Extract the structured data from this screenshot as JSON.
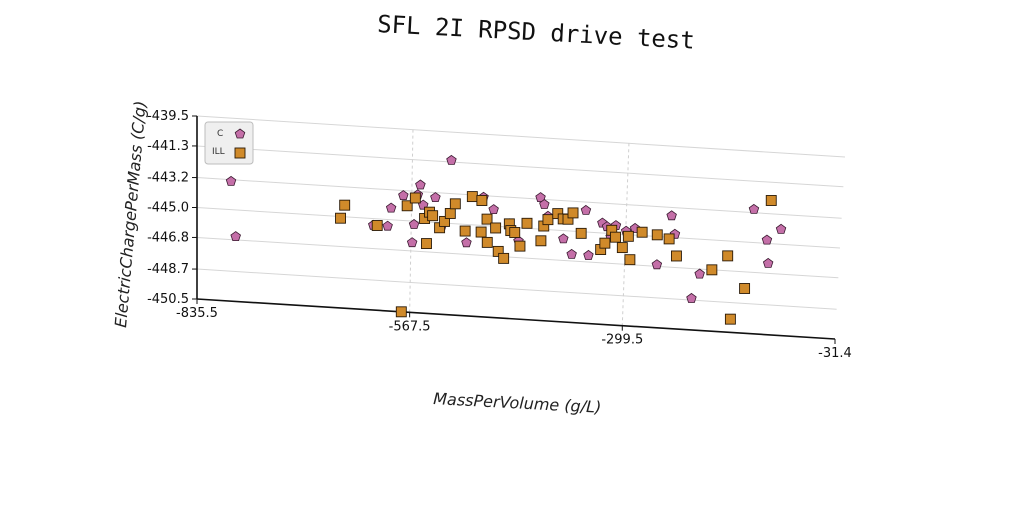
{
  "chart_data": {
    "type": "scatter",
    "title": "SFL 2I RPSD drive test",
    "xlabel": "MassPerVolume (g/L)",
    "ylabel": "ElectricChargePerMass (C/g)",
    "xlim": [
      -835.5,
      -31.4
    ],
    "ylim": [
      -450.5,
      -439.5
    ],
    "x_ticks": [
      "-835.5",
      "-567.5",
      "-299.5",
      "-31.4"
    ],
    "y_ticks": [
      "-439.5",
      "-441.3",
      "-443.2",
      "-445.0",
      "-446.8",
      "-448.7",
      "-450.5"
    ],
    "grid": true,
    "legend_position": "top-left",
    "series": [
      {
        "name": "C",
        "marker": "pentagon",
        "color": "#c46fa8",
        "points": [
          [
            -793,
            -443.3
          ],
          [
            -787,
            -446.6
          ],
          [
            -615,
            -445.4
          ],
          [
            -597,
            -445.4
          ],
          [
            -593,
            -444.3
          ],
          [
            -578,
            -443.5
          ],
          [
            -566,
            -446.3
          ],
          [
            -564,
            -445.2
          ],
          [
            -560,
            -443.4
          ],
          [
            -557,
            -442.8
          ],
          [
            -553,
            -444.0
          ],
          [
            -549,
            -444.7
          ],
          [
            -538,
            -443.5
          ],
          [
            -530,
            -445.3
          ],
          [
            -519,
            -441.2
          ],
          [
            -498,
            -446.1
          ],
          [
            -478,
            -443.3
          ],
          [
            -465,
            -444.0
          ],
          [
            -445,
            -444.8
          ],
          [
            -433,
            -445.8
          ],
          [
            -407,
            -443.1
          ],
          [
            -402,
            -443.5
          ],
          [
            -397,
            -444.2
          ],
          [
            -377,
            -445.5
          ],
          [
            -366,
            -446.4
          ],
          [
            -350,
            -443.7
          ],
          [
            -345,
            -446.4
          ],
          [
            -329,
            -444.4
          ],
          [
            -323,
            -444.6
          ],
          [
            -318,
            -445.2
          ],
          [
            -312,
            -444.5
          ],
          [
            -299,
            -444.8
          ],
          [
            -288,
            -444.6
          ],
          [
            -259,
            -446.7
          ],
          [
            -243,
            -443.7
          ],
          [
            -238,
            -444.8
          ],
          [
            -214,
            -448.6
          ],
          [
            -205,
            -447.1
          ],
          [
            -141,
            -443.0
          ],
          [
            -123,
            -444.8
          ],
          [
            -120,
            -446.2
          ],
          [
            -106,
            -444.1
          ]
        ]
      },
      {
        "name": "ILL",
        "marker": "square",
        "color": "#d08a2a",
        "points": [
          [
            -656,
            -445.1
          ],
          [
            -651,
            -444.3
          ],
          [
            -610,
            -445.4
          ],
          [
            -578,
            -450.5
          ],
          [
            -573,
            -444.1
          ],
          [
            -563,
            -443.6
          ],
          [
            -551,
            -444.8
          ],
          [
            -548,
            -446.3
          ],
          [
            -545,
            -444.4
          ],
          [
            -541,
            -444.6
          ],
          [
            -532,
            -445.3
          ],
          [
            -526,
            -444.9
          ],
          [
            -519,
            -444.4
          ],
          [
            -513,
            -443.8
          ],
          [
            -500,
            -445.4
          ],
          [
            -492,
            -443.3
          ],
          [
            -480,
            -443.5
          ],
          [
            -480,
            -445.4
          ],
          [
            -473,
            -444.6
          ],
          [
            -472,
            -446.0
          ],
          [
            -462,
            -445.1
          ],
          [
            -458,
            -446.5
          ],
          [
            -451,
            -446.9
          ],
          [
            -445,
            -444.8
          ],
          [
            -443,
            -445.2
          ],
          [
            -438,
            -445.3
          ],
          [
            -431,
            -446.1
          ],
          [
            -423,
            -444.7
          ],
          [
            -405,
            -445.7
          ],
          [
            -402,
            -444.8
          ],
          [
            -397,
            -444.4
          ],
          [
            -385,
            -444.0
          ],
          [
            -378,
            -444.3
          ],
          [
            -372,
            -444.3
          ],
          [
            -366,
            -443.9
          ],
          [
            -355,
            -445.1
          ],
          [
            -330,
            -446.0
          ],
          [
            -325,
            -445.6
          ],
          [
            -317,
            -444.8
          ],
          [
            -312,
            -445.2
          ],
          [
            -303,
            -445.8
          ],
          [
            -296,
            -445.1
          ],
          [
            -293,
            -446.5
          ],
          [
            -279,
            -444.8
          ],
          [
            -260,
            -444.9
          ],
          [
            -245,
            -445.1
          ],
          [
            -235,
            -446.1
          ],
          [
            -190,
            -446.8
          ],
          [
            -171,
            -445.9
          ],
          [
            -164,
            -449.7
          ],
          [
            -148,
            -447.8
          ],
          [
            -120,
            -442.4
          ]
        ]
      }
    ]
  }
}
